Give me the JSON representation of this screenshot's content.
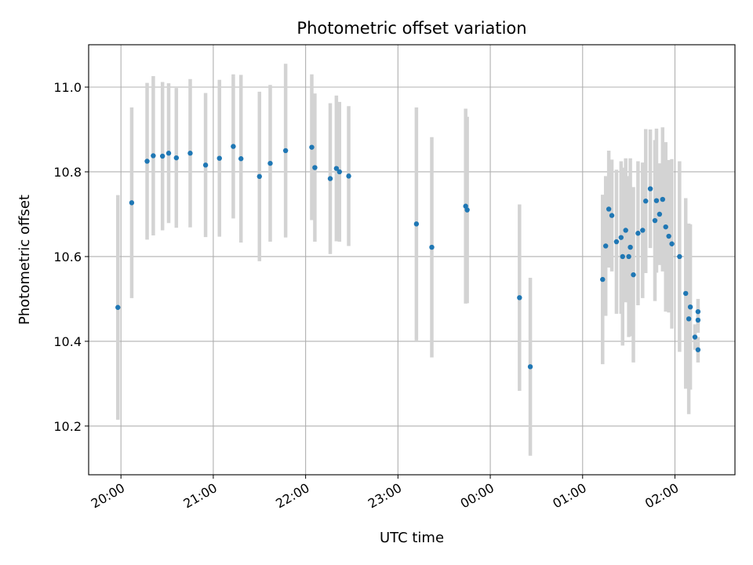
{
  "chart_data": {
    "type": "scatter",
    "title": "Photometric offset variation",
    "xlabel": "UTC time",
    "ylabel": "Photometric offset",
    "grid": true,
    "x_tick_labels": [
      "20:00",
      "21:00",
      "22:00",
      "23:00",
      "00:00",
      "01:00",
      "02:00"
    ],
    "x_tick_hours": [
      0,
      1,
      2,
      3,
      4,
      5,
      6
    ],
    "y_ticks": [
      10.2,
      10.4,
      10.6,
      10.8,
      11.0
    ],
    "y_tick_labels": [
      "10.2",
      "10.4",
      "10.6",
      "10.8",
      "11.0"
    ],
    "xlim_hours_from_20": [
      -0.35,
      6.65
    ],
    "ylim": [
      10.085,
      11.1
    ],
    "x_start_clock": "20:00",
    "colors": {
      "point": "#1f77b4",
      "errorbar": "#d3d3d3",
      "grid": "#b0b0b0"
    },
    "series": [
      {
        "x_time": [
          "19:58",
          "20:07",
          "20:17",
          "20:21",
          "20:27",
          "20:31",
          "20:36",
          "20:45",
          "20:55",
          "21:04",
          "21:13",
          "21:18",
          "21:30",
          "21:37",
          "21:47",
          "22:04",
          "22:06",
          "22:16",
          "22:20",
          "22:22",
          "22:28",
          "23:12",
          "23:22",
          "23:44",
          "23:45",
          "00:19",
          "00:26",
          "01:13",
          "01:15",
          "01:17",
          "01:19",
          "01:22",
          "01:25",
          "01:26",
          "01:28",
          "01:30",
          "01:31",
          "01:33",
          "01:36",
          "01:39",
          "01:41",
          "01:44",
          "01:47",
          "01:48",
          "01:50",
          "01:52",
          "01:54",
          "01:56",
          "01:58",
          "02:03",
          "02:07",
          "02:09",
          "02:10",
          "02:13",
          "02:15",
          "02:15",
          "02:15"
        ],
        "y": [
          10.48,
          10.727,
          10.825,
          10.838,
          10.837,
          10.844,
          10.833,
          10.844,
          10.816,
          10.832,
          10.86,
          10.831,
          10.789,
          10.82,
          10.85,
          10.858,
          10.81,
          10.784,
          10.808,
          10.8,
          10.79,
          10.677,
          10.622,
          10.719,
          10.71,
          10.503,
          10.34,
          10.546,
          10.625,
          10.712,
          10.697,
          10.635,
          10.645,
          10.6,
          10.662,
          10.6,
          10.622,
          10.557,
          10.655,
          10.662,
          10.731,
          10.76,
          10.685,
          10.732,
          10.7,
          10.735,
          10.67,
          10.648,
          10.63,
          10.6,
          10.513,
          10.453,
          10.481,
          10.41,
          10.45,
          10.38,
          10.47
        ],
        "err": [
          0.265,
          0.225,
          0.185,
          0.188,
          0.175,
          0.165,
          0.165,
          0.175,
          0.17,
          0.185,
          0.17,
          0.198,
          0.2,
          0.185,
          0.205,
          0.172,
          0.175,
          0.178,
          0.172,
          0.165,
          0.165,
          0.275,
          0.26,
          0.23,
          0.22,
          0.22,
          0.21,
          0.2,
          0.165,
          0.138,
          0.132,
          0.17,
          0.18,
          0.21,
          0.17,
          0.19,
          0.21,
          0.207,
          0.17,
          0.16,
          0.17,
          0.14,
          0.19,
          0.17,
          0.12,
          0.17,
          0.2,
          0.18,
          0.2,
          0.225,
          0.225,
          0.225,
          0.195,
          0.03,
          0.03,
          0.03,
          0.03
        ]
      }
    ]
  }
}
